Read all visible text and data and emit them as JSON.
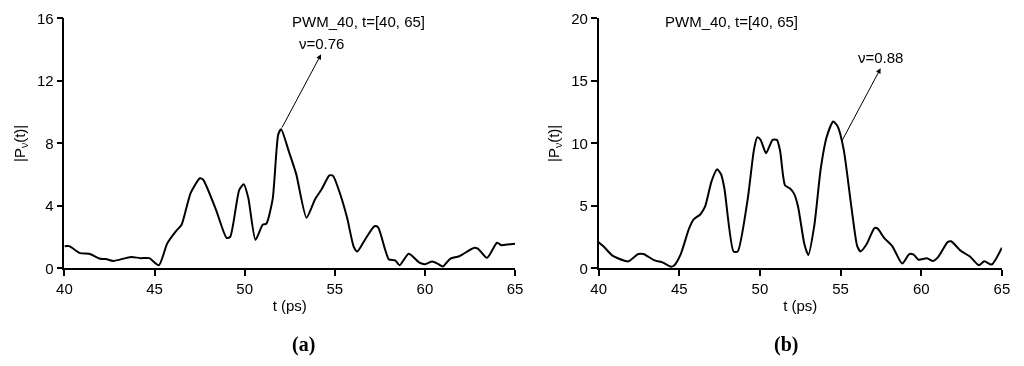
{
  "chart_data": [
    {
      "type": "line",
      "title": "PWM_40, t=[40, 65]",
      "xlabel": "t (ps)",
      "ylabel": "|P$_{ν}$(t)|",
      "x": [
        40,
        40.26,
        40.87,
        41.37,
        41.98,
        42.3,
        42.7,
        43.7,
        44.2,
        44.7,
        45.24,
        45.7,
        46.2,
        46.5,
        47.0,
        47.52,
        47.7,
        48.4,
        49.0,
        49.2,
        49.7,
        49.95,
        50.2,
        50.6,
        51.0,
        51.2,
        51.55,
        51.86,
        52.02,
        52.46,
        52.86,
        53.43,
        53.9,
        54.27,
        54.7,
        54.9,
        55.28,
        55.69,
        56.05,
        56.25,
        56.7,
        57.2,
        57.4,
        57.8,
        58.0,
        58.35,
        58.6,
        59.1,
        59.7,
        60.0,
        60.4,
        60.7,
        61.0,
        61.4,
        61.9,
        62.74,
        62.94,
        63.45,
        64.0,
        64.25,
        64.56,
        65.0
      ],
      "series": [
        {
          "color": "#000000",
          "values": [
            1.42,
            1.42,
            0.97,
            0.93,
            0.61,
            0.59,
            0.47,
            0.73,
            0.65,
            0.65,
            0.2,
            1.58,
            2.39,
            2.79,
            4.82,
            5.77,
            5.67,
            3.77,
            1.94,
            2.02,
            5.02,
            5.38,
            4.51,
            1.82,
            2.79,
            2.85,
            4.41,
            8.56,
            8.9,
            7.45,
            6.03,
            3.24,
            4.41,
            5.06,
            5.95,
            5.93,
            4.82,
            3.2,
            1.38,
            1.07,
            1.88,
            2.69,
            2.63,
            1.17,
            0.57,
            0.51,
            0.2,
            0.93,
            0.36,
            0.26,
            0.43,
            0.3,
            0.12,
            0.61,
            0.77,
            1.32,
            1.26,
            0.67,
            1.64,
            1.48,
            1.52,
            1.58
          ]
        }
      ],
      "xlim": [
        40,
        65
      ],
      "xticks": [
        40,
        45,
        50,
        55,
        60,
        65
      ],
      "ylim": [
        0,
        16
      ],
      "yticks": [
        0,
        4,
        8,
        12,
        16
      ],
      "marker": "none",
      "line_style": "solid",
      "annotations": [
        {
          "text": "ν=0.76",
          "x": 52.02,
          "y": 8.9
        },
        "(a)"
      ]
    },
    {
      "type": "line",
      "title": "PWM_40, t=[40, 65]",
      "xlabel": "t (ps)",
      "ylabel": "|P$_{ν}$(t)|",
      "x": [
        40,
        40.34,
        40.85,
        41.66,
        41.86,
        42.46,
        42.77,
        43.47,
        43.98,
        44.48,
        44.68,
        45.09,
        45.6,
        45.9,
        46.3,
        46.6,
        47.0,
        47.35,
        47.6,
        47.8,
        48.36,
        48.62,
        49.23,
        49.63,
        49.83,
        50.04,
        50.38,
        50.78,
        51.05,
        51.25,
        51.55,
        51.85,
        52.12,
        52.36,
        52.76,
        53.0,
        53.37,
        53.77,
        54.14,
        54.54,
        54.82,
        55.19,
        55.69,
        56.03,
        56.24,
        56.6,
        57.1,
        57.3,
        57.71,
        58.2,
        58.82,
        59.26,
        59.53,
        59.83,
        60.34,
        60.74,
        61.04,
        61.65,
        61.85,
        62.45,
        63.02,
        63.57,
        63.91,
        64.37,
        65.0
      ],
      "series": [
        {
          "color": "#000000",
          "values": [
            2.08,
            1.7,
            1.02,
            0.58,
            0.56,
            1.14,
            1.14,
            0.63,
            0.46,
            0.13,
            0.23,
            1.14,
            3.17,
            3.93,
            4.31,
            4.95,
            6.98,
            7.92,
            7.49,
            6.35,
            1.35,
            1.35,
            5.46,
            9.52,
            10.48,
            10.28,
            9.21,
            10.28,
            10.28,
            9.39,
            6.65,
            6.4,
            5.96,
            4.95,
            1.9,
            1.07,
            3.43,
            8.0,
            10.53,
            11.75,
            11.35,
            9.52,
            4.7,
            1.78,
            1.35,
            1.9,
            3.22,
            3.17,
            2.41,
            1.78,
            0.38,
            1.14,
            1.09,
            0.69,
            0.81,
            0.58,
            0.89,
            2.11,
            2.16,
            1.4,
            0.94,
            0.25,
            0.56,
            0.3,
            1.65
          ]
        }
      ],
      "xlim": [
        40,
        65
      ],
      "xticks": [
        40,
        45,
        50,
        55,
        60,
        65
      ],
      "ylim": [
        0,
        20
      ],
      "yticks": [
        0,
        5,
        10,
        15,
        20
      ],
      "marker": "none",
      "line_style": "solid",
      "annotations": [
        {
          "text": "ν=0.88",
          "x": 55.0,
          "y": 10.0
        },
        "(b)"
      ]
    }
  ]
}
